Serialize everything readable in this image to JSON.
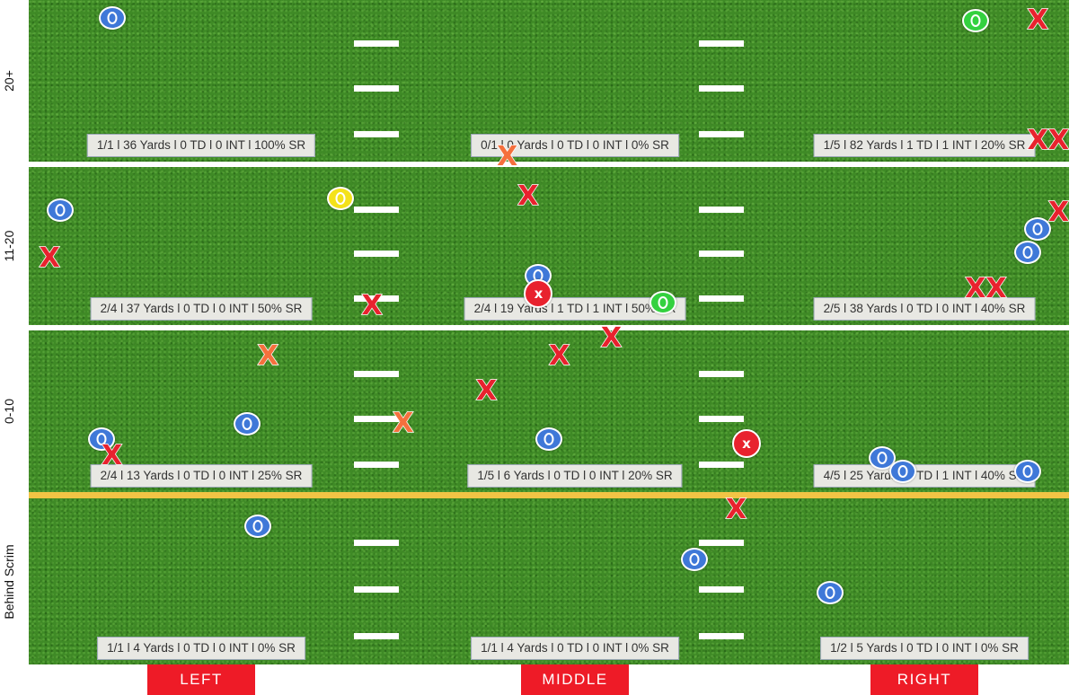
{
  "chart_data": {
    "type": "scatter",
    "title": "",
    "zones": [
      "20+",
      "11-20",
      "0-10",
      "Behind Scrim"
    ],
    "columns": [
      "LEFT",
      "MIDDLE",
      "RIGHT"
    ],
    "colors": {
      "blue": "#3f78d8",
      "green": "#33d13f",
      "yellow": "#f4e21a",
      "red": "#e8222e",
      "orange": "#f5703d"
    },
    "cells": [
      {
        "zone": "20+",
        "column": "LEFT",
        "text": "1/1 l 36 Yards l 0 TD l 0 INT l 100% SR"
      },
      {
        "zone": "20+",
        "column": "MIDDLE",
        "text": "0/1 l 0 Yards l 0 TD l 0 INT l 0% SR"
      },
      {
        "zone": "20+",
        "column": "RIGHT",
        "text": "1/5 l 82 Yards l 1 TD l 1 INT l 20% SR"
      },
      {
        "zone": "11-20",
        "column": "LEFT",
        "text": "2/4 l 37 Yards l 0 TD l 0 INT l 50% SR"
      },
      {
        "zone": "11-20",
        "column": "MIDDLE",
        "text": "2/4 l 19 Yards l 1 TD l 1 INT l 50% SR"
      },
      {
        "zone": "11-20",
        "column": "RIGHT",
        "text": "2/5 l 38 Yards l 0 TD l 0 INT l 40% SR"
      },
      {
        "zone": "0-10",
        "column": "LEFT",
        "text": "2/4 l 13 Yards l 0 TD l 0 INT l 25% SR"
      },
      {
        "zone": "0-10",
        "column": "MIDDLE",
        "text": "1/5 l 6 Yards l 0 TD l 0 INT l 20% SR"
      },
      {
        "zone": "0-10",
        "column": "RIGHT",
        "text": "4/5 l 25 Yards l 0 TD l 1 INT l 40% SR"
      },
      {
        "zone": "Behind Scrim",
        "column": "LEFT",
        "text": "1/1 l 4 Yards l 0 TD l 0 INT l 0% SR"
      },
      {
        "zone": "Behind Scrim",
        "column": "MIDDLE",
        "text": "1/1 l 4 Yards l 0 TD l 0 INT l 0% SR"
      },
      {
        "zone": "Behind Scrim",
        "column": "RIGHT",
        "text": "1/2 l 5 Yards l 0 TD l 0 INT l 0% SR"
      }
    ],
    "marks": [
      {
        "x": 0.08,
        "y": 0.89,
        "zone": "20+",
        "symbol": "O",
        "color": "blue"
      },
      {
        "x": 0.46,
        "y": 0.03,
        "zone": "20+",
        "symbol": "X",
        "color": "orange"
      },
      {
        "x": 0.91,
        "y": 0.87,
        "zone": "20+",
        "symbol": "O",
        "color": "green"
      },
      {
        "x": 0.97,
        "y": 0.87,
        "zone": "20+",
        "symbol": "X",
        "color": "red"
      },
      {
        "x": 0.97,
        "y": 0.13,
        "zone": "20+",
        "symbol": "X",
        "color": "red"
      },
      {
        "x": 0.99,
        "y": 0.13,
        "zone": "20+",
        "symbol": "X",
        "color": "red"
      },
      {
        "x": 0.03,
        "y": 0.73,
        "zone": "11-20",
        "symbol": "O",
        "color": "blue"
      },
      {
        "x": 0.3,
        "y": 0.8,
        "zone": "11-20",
        "symbol": "O",
        "color": "yellow"
      },
      {
        "x": 0.02,
        "y": 0.42,
        "zone": "11-20",
        "symbol": "X",
        "color": "red"
      },
      {
        "x": 0.33,
        "y": 0.12,
        "zone": "11-20",
        "symbol": "X",
        "color": "red"
      },
      {
        "x": 0.48,
        "y": 0.81,
        "zone": "11-20",
        "symbol": "X",
        "color": "red"
      },
      {
        "x": 0.49,
        "y": 0.31,
        "zone": "11-20",
        "symbol": "O",
        "color": "blue"
      },
      {
        "x": 0.49,
        "y": 0.2,
        "zone": "11-20",
        "symbol": "circle-x",
        "color": "red"
      },
      {
        "x": 0.61,
        "y": 0.14,
        "zone": "11-20",
        "symbol": "O",
        "color": "green"
      },
      {
        "x": 0.97,
        "y": 0.61,
        "zone": "11-20",
        "symbol": "O",
        "color": "blue"
      },
      {
        "x": 0.99,
        "y": 0.71,
        "zone": "11-20",
        "symbol": "X",
        "color": "red"
      },
      {
        "x": 0.96,
        "y": 0.46,
        "zone": "11-20",
        "symbol": "O",
        "color": "blue"
      },
      {
        "x": 0.91,
        "y": 0.23,
        "zone": "11-20",
        "symbol": "X",
        "color": "red"
      },
      {
        "x": 0.93,
        "y": 0.23,
        "zone": "11-20",
        "symbol": "X",
        "color": "red"
      },
      {
        "x": 0.23,
        "y": 0.84,
        "zone": "0-10",
        "symbol": "X",
        "color": "orange"
      },
      {
        "x": 0.51,
        "y": 0.84,
        "zone": "0-10",
        "symbol": "X",
        "color": "red"
      },
      {
        "x": 0.56,
        "y": 0.95,
        "zone": "0-10",
        "symbol": "X",
        "color": "red"
      },
      {
        "x": 0.44,
        "y": 0.62,
        "zone": "0-10",
        "symbol": "X",
        "color": "red"
      },
      {
        "x": 0.21,
        "y": 0.42,
        "zone": "0-10",
        "symbol": "O",
        "color": "blue"
      },
      {
        "x": 0.36,
        "y": 0.42,
        "zone": "0-10",
        "symbol": "X",
        "color": "orange"
      },
      {
        "x": 0.07,
        "y": 0.33,
        "zone": "0-10",
        "symbol": "O",
        "color": "blue"
      },
      {
        "x": 0.08,
        "y": 0.22,
        "zone": "0-10",
        "symbol": "X",
        "color": "red"
      },
      {
        "x": 0.5,
        "y": 0.33,
        "zone": "0-10",
        "symbol": "O",
        "color": "blue"
      },
      {
        "x": 0.69,
        "y": 0.3,
        "zone": "0-10",
        "symbol": "circle-x",
        "color": "red"
      },
      {
        "x": 0.82,
        "y": 0.21,
        "zone": "0-10",
        "symbol": "O",
        "color": "blue"
      },
      {
        "x": 0.84,
        "y": 0.13,
        "zone": "0-10",
        "symbol": "O",
        "color": "blue"
      },
      {
        "x": 0.96,
        "y": 0.13,
        "zone": "0-10",
        "symbol": "O",
        "color": "blue"
      },
      {
        "x": 0.22,
        "y": 0.83,
        "zone": "Behind Scrim",
        "symbol": "O",
        "color": "blue"
      },
      {
        "x": 0.68,
        "y": 0.93,
        "zone": "Behind Scrim",
        "symbol": "X",
        "color": "red"
      },
      {
        "x": 0.64,
        "y": 0.63,
        "zone": "Behind Scrim",
        "symbol": "O",
        "color": "blue"
      },
      {
        "x": 0.77,
        "y": 0.43,
        "zone": "Behind Scrim",
        "symbol": "O",
        "color": "blue"
      }
    ]
  }
}
